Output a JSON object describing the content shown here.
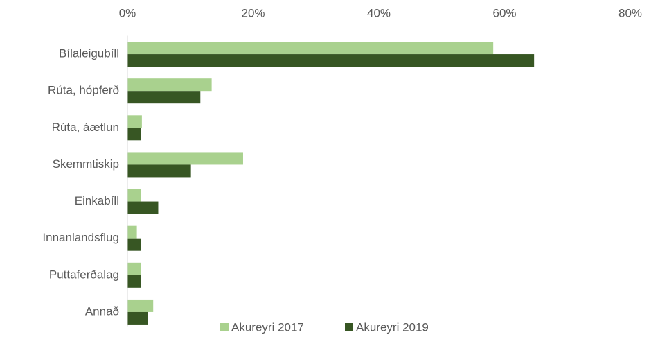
{
  "chart_data": {
    "type": "hbar",
    "categories": [
      "Bílaleigubíll",
      "Rúta, hópferð",
      "Rúta, áætlun",
      "Skemmtiskip",
      "Einkabíll",
      "Innanlandsflug",
      "Puttaferðalag",
      "Annað"
    ],
    "series": [
      {
        "name": "Akureyri 2017",
        "color": "#a9d18e",
        "values": [
          58.2,
          13.4,
          2.3,
          18.4,
          2.2,
          1.5,
          2.2,
          4.1
        ]
      },
      {
        "name": "Akureyri 2019",
        "color": "#375623",
        "values": [
          64.7,
          11.6,
          2.1,
          10.1,
          4.9,
          2.2,
          2.1,
          3.3
        ]
      }
    ],
    "xlim": [
      0,
      80
    ],
    "xticks": [
      {
        "value": 0,
        "label": "0%"
      },
      {
        "value": 20,
        "label": "20%"
      },
      {
        "value": 40,
        "label": "40%"
      },
      {
        "value": 60,
        "label": "60%"
      },
      {
        "value": 80,
        "label": "80%"
      }
    ],
    "grid": false,
    "legend": "bottom"
  }
}
